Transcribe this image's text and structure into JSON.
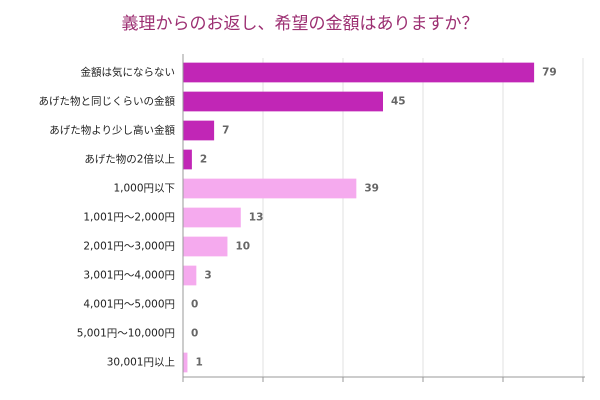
{
  "chart_data": {
    "type": "hbar",
    "title": "義理からのお返し、希望の金額はありますか？",
    "categories": [
      "金額は気にならない",
      "あげた物と同じくらいの金額",
      "あげた物より少し高い金額",
      "あげた物の2倍以上",
      "1,000円以下",
      "1,001円～2,000円",
      "2,001円～3,000円",
      "3,001円～4,000円",
      "4,001円～5,000円",
      "5,001円～10,000円",
      "30,001円以上"
    ],
    "values": [
      79,
      45,
      7,
      2,
      39,
      13,
      10,
      3,
      0,
      0,
      1
    ],
    "colors": [
      "#c126b6",
      "#c126b6",
      "#c126b6",
      "#c126b6",
      "#f5aaee",
      "#f5aaee",
      "#f5aaee",
      "#f5aaee",
      "#f5aaee",
      "#f5aaee",
      "#f5aaee"
    ],
    "xlim": [
      0,
      90
    ],
    "xticks": [
      0,
      18,
      36,
      54,
      72,
      90
    ],
    "grid": true
  }
}
